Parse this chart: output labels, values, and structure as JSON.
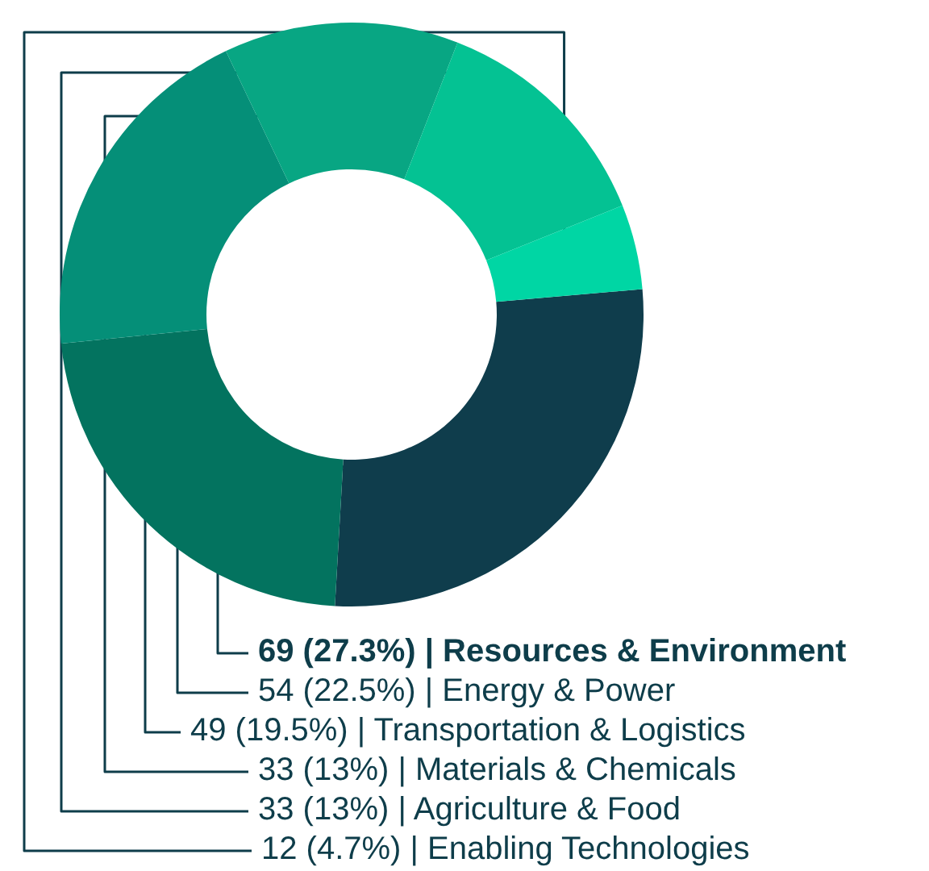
{
  "chart_data": {
    "type": "donut",
    "categories": [
      "Resources & Environment",
      "Energy & Power",
      "Transportation & Logistics",
      "Materials & Chemicals",
      "Agriculture & Food",
      "Enabling Technologies"
    ],
    "values": [
      27.3,
      22.5,
      19.5,
      13,
      13,
      4.7
    ],
    "value_labels": [
      "69 (27.3%) |",
      "54 (22.5%) |",
      "49 (19.5%) |",
      "33 (13%) |",
      "33 (13%) |",
      "12 (4.7%) |"
    ],
    "colors": [
      "#0f3d4c",
      "#03735f",
      "#058f78",
      "#08a683",
      "#04c293",
      "#00d6a4"
    ],
    "legend": false
  }
}
